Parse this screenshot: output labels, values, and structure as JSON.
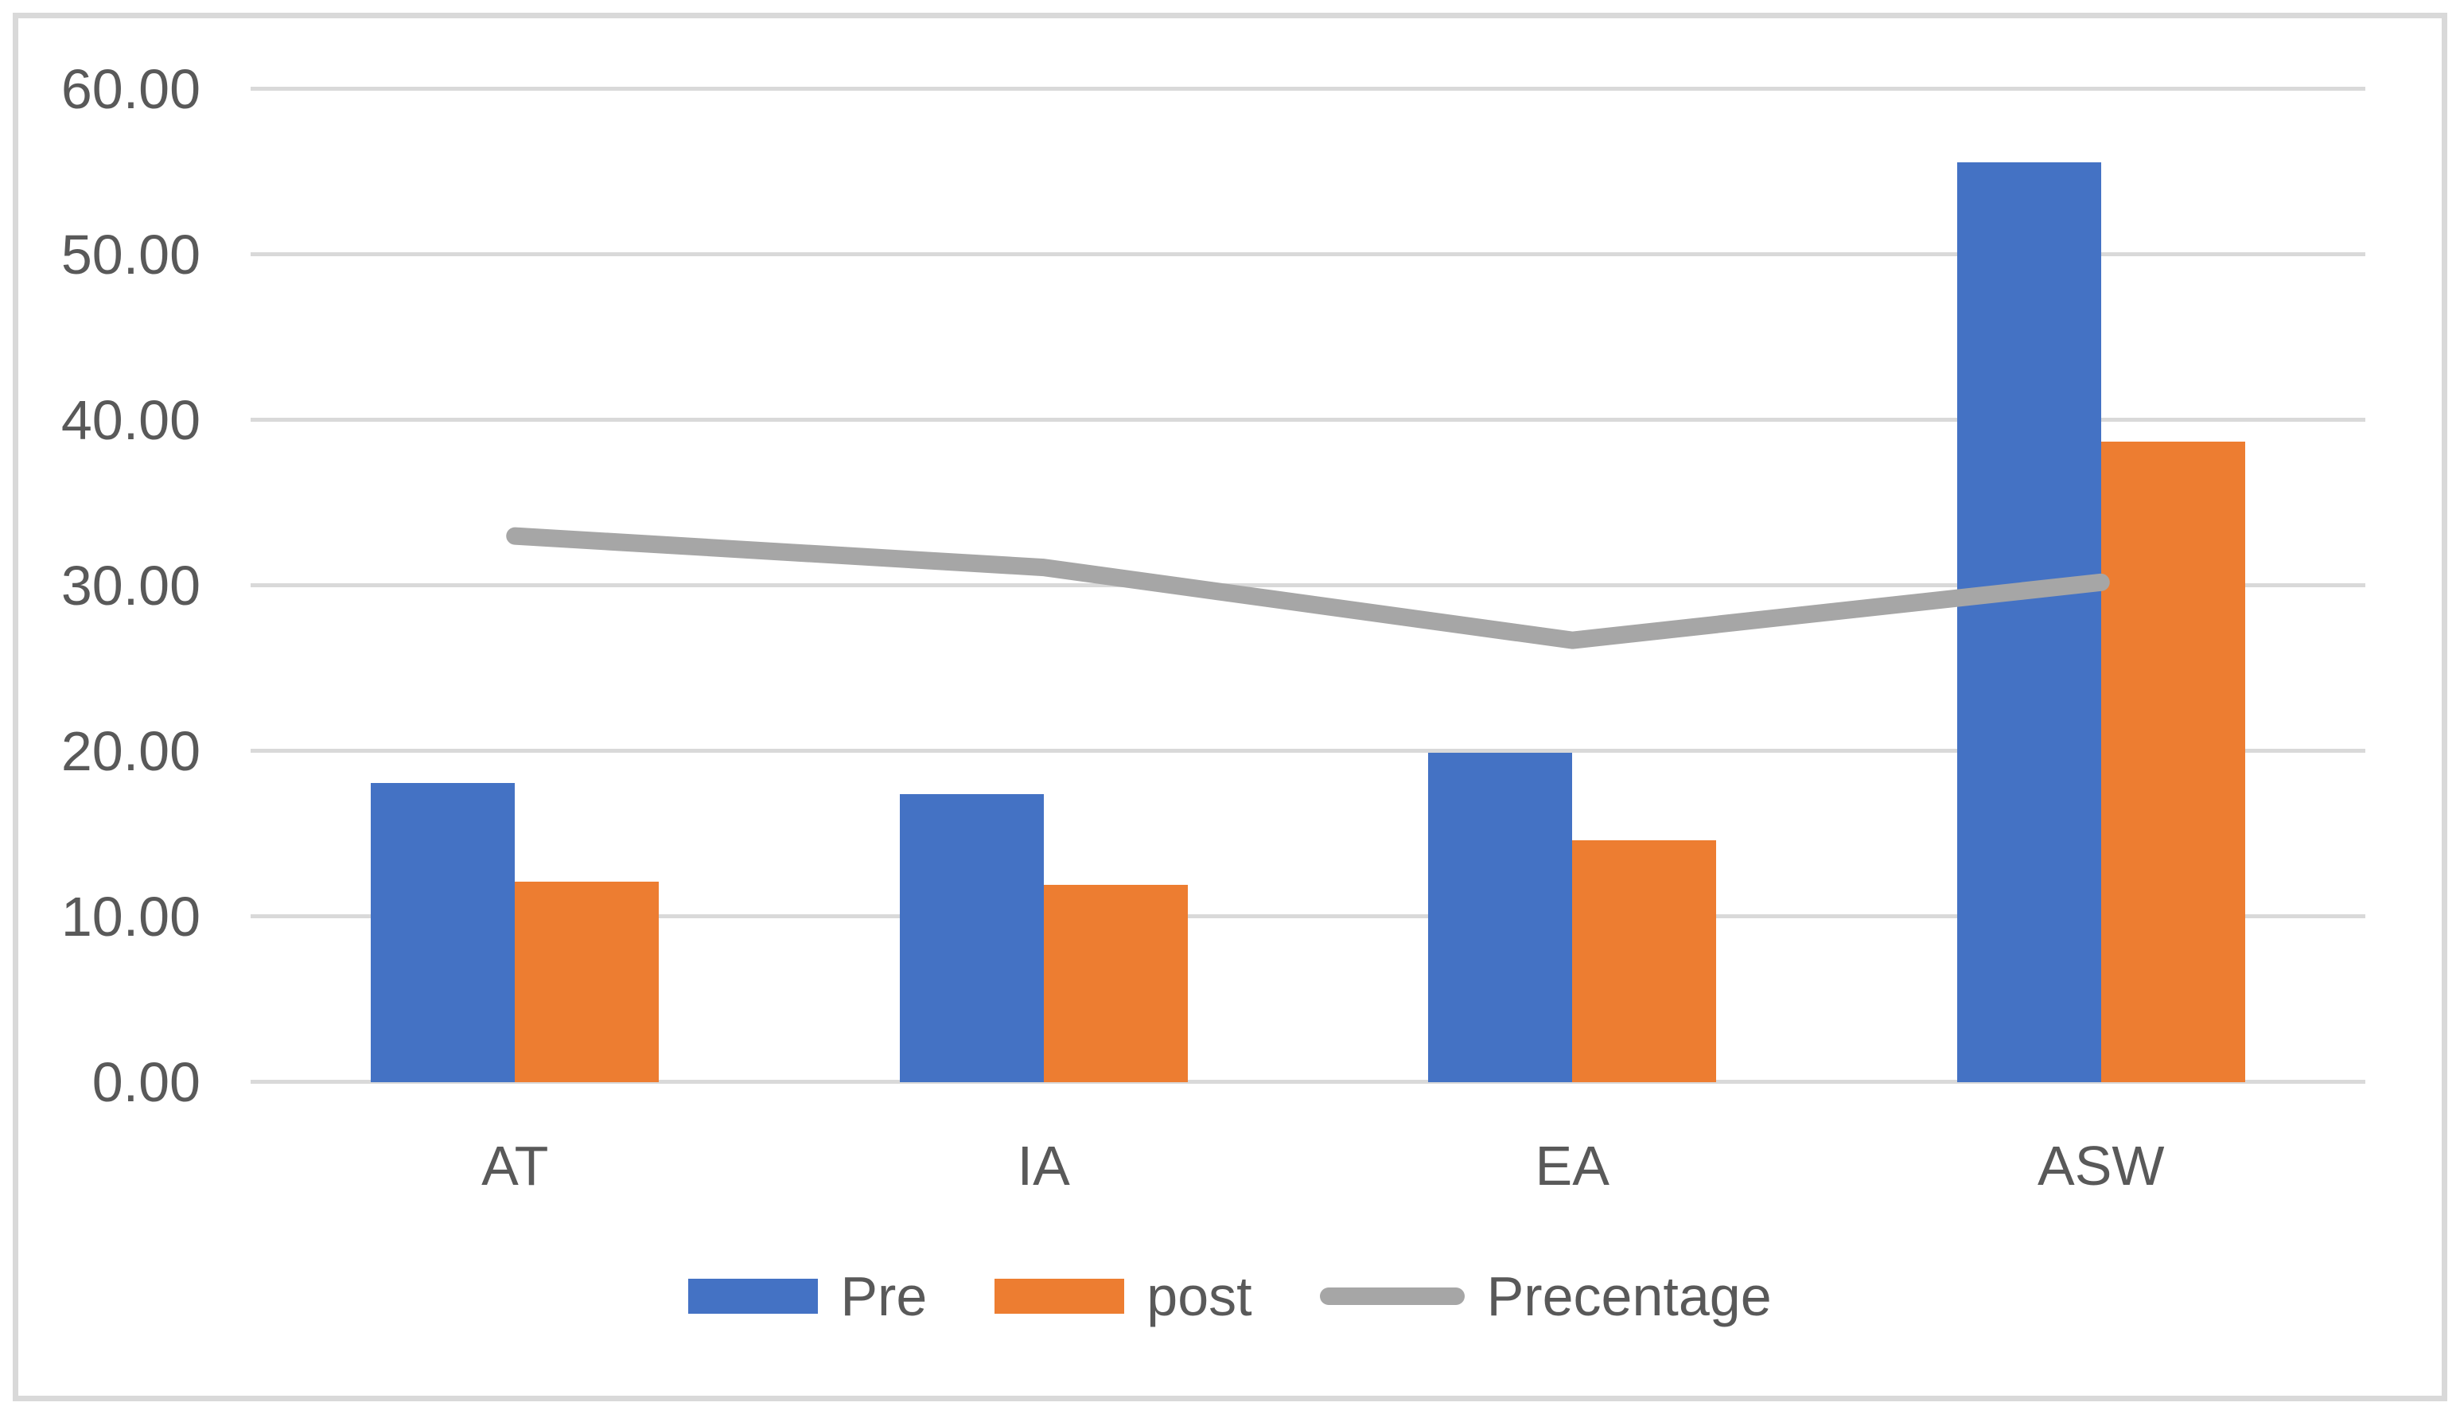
{
  "chart_data": {
    "type": "combo-bar-line",
    "title": "",
    "xlabel": "",
    "ylabel": "",
    "categories": [
      "AT",
      "IA",
      "EA",
      "ASW"
    ],
    "series": [
      {
        "name": "Pre",
        "type": "bar",
        "color": "#4472C4",
        "values": [
          18.1,
          17.4,
          19.9,
          55.6
        ]
      },
      {
        "name": "post",
        "type": "bar",
        "color": "#ED7D31",
        "values": [
          12.1,
          11.9,
          14.6,
          38.7
        ]
      },
      {
        "name": "Precentage",
        "type": "line",
        "color": "#A6A6A6",
        "values": [
          33.0,
          31.1,
          26.7,
          30.2
        ]
      }
    ],
    "ylim": [
      0,
      60
    ],
    "y_tick_step": 10,
    "y_tick_labels": [
      "0.00",
      "10.00",
      "20.00",
      "30.00",
      "40.00",
      "50.00",
      "60.00"
    ],
    "grid": true,
    "legend_position": "bottom",
    "colors": {
      "gridline": "#D9D9D9",
      "frame_border": "#D9D9D9",
      "text": "#595959",
      "background": "#FFFFFF"
    }
  }
}
